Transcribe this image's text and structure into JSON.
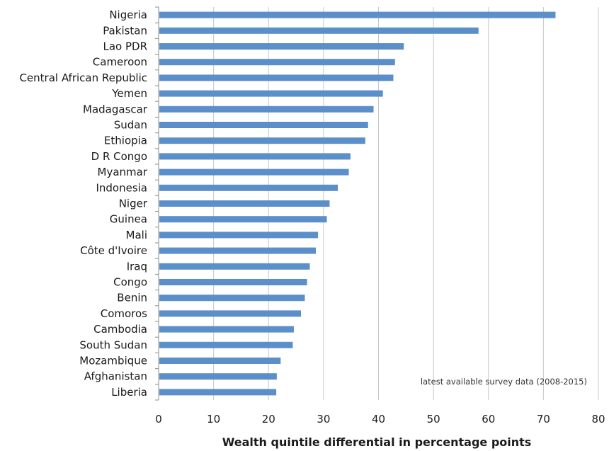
{
  "chart_data": {
    "type": "bar",
    "orientation": "horizontal",
    "categories": [
      "Nigeria",
      "Pakistan",
      "Lao PDR",
      "Cameroon",
      "Central African Republic",
      "Yemen",
      "Madagascar",
      "Sudan",
      "Ethiopia",
      "D R Congo",
      "Myanmar",
      "Indonesia",
      "Niger",
      "Guinea",
      "Mali",
      "Côte d'Ivoire",
      "Iraq",
      "Congo",
      "Benin",
      "Comoros",
      "Cambodia",
      "South Sudan",
      "Mozambique",
      "Afghanistan",
      "Liberia"
    ],
    "values": [
      72.2,
      58.2,
      44.6,
      43.0,
      42.7,
      40.8,
      39.1,
      38.1,
      37.6,
      34.9,
      34.6,
      32.6,
      31.1,
      30.6,
      29.0,
      28.6,
      27.5,
      27.0,
      26.6,
      25.9,
      24.6,
      24.4,
      22.2,
      21.5,
      21.4
    ],
    "xlabel": "Wealth quintile differential in percentage points",
    "xlim": [
      0,
      80
    ],
    "xticks": [
      0,
      10,
      20,
      30,
      40,
      50,
      60,
      70,
      80
    ],
    "grid": "vertical",
    "annotation": "latest available survey data (2008-2015)",
    "colors": {
      "bar": "#5b8fc9",
      "grid": "#c8c8c8",
      "axis": "#8c8c8c"
    }
  }
}
